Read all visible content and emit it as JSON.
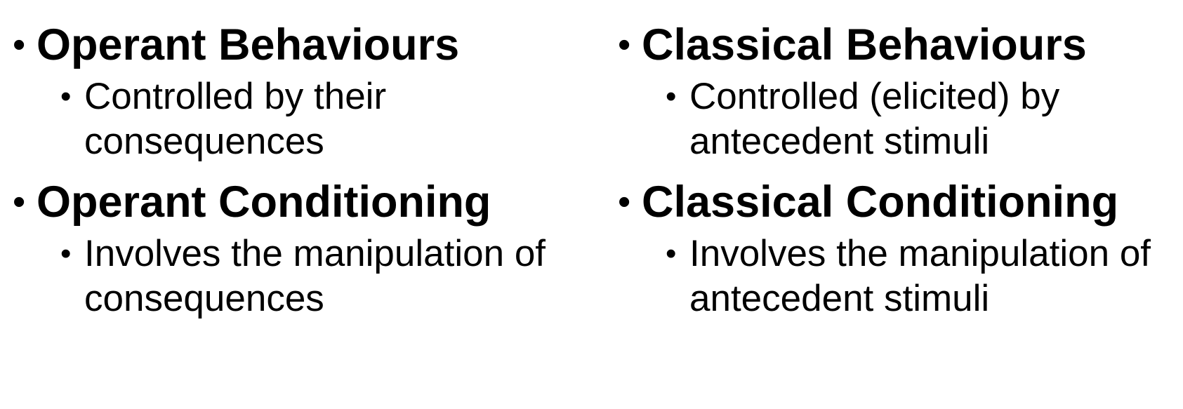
{
  "bullet_glyph": "•",
  "left_column": {
    "item1": {
      "heading": "Operant Behaviours",
      "sub": "Controlled by their consequences"
    },
    "item2": {
      "heading": "Operant Conditioning",
      "sub": "Involves the manipulation of consequences"
    }
  },
  "right_column": {
    "item1": {
      "heading": "Classical Behaviours",
      "sub": "Controlled (elicited) by antecedent stimuli"
    },
    "item2": {
      "heading": "Classical Conditioning",
      "sub": "Involves the manipulation of antecedent stimuli"
    }
  }
}
